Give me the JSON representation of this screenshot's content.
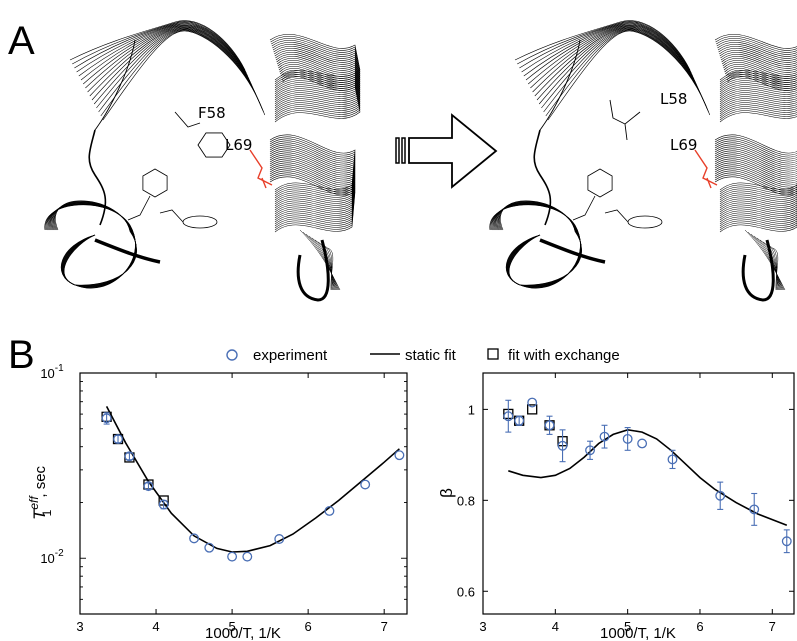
{
  "figure": {
    "panel_a": "A",
    "panel_b": "B",
    "labels": {
      "left_aromatic": "F58",
      "left_leucine": "L69",
      "right_mutant": "L58",
      "right_leucine": "L69"
    },
    "colors": {
      "ribbon": "#000000",
      "highlight": "#e8402a",
      "marker": "#4a6fb5",
      "line": "#000000"
    }
  },
  "legend": {
    "experiment": "experiment",
    "static_fit": "static fit",
    "fit_exchange": "fit with exchange"
  },
  "chart_data": [
    {
      "type": "scatter",
      "ylabel_main": "T",
      "ylabel_sup": "eff",
      "ylabel_sub": "1",
      "ylabel_tail": ", sec",
      "xlabel": "1000/T, 1/K",
      "xlim": [
        3,
        7.3
      ],
      "ylim": [
        0.005,
        0.1
      ],
      "yscale": "log",
      "xticks": [
        "3",
        "4",
        "5",
        "6",
        "7"
      ],
      "yticks": [
        {
          "base": "10",
          "exp": "-1",
          "value": 0.1
        },
        {
          "base": "10",
          "exp": "-2",
          "value": 0.01
        }
      ],
      "series": [
        {
          "name": "experiment",
          "x": [
            3.35,
            3.5,
            3.65,
            3.9,
            4.1,
            4.5,
            4.7,
            5.0,
            5.2,
            5.62,
            6.28,
            6.75,
            7.2
          ],
          "y": [
            0.057,
            0.044,
            0.0355,
            0.0245,
            0.0195,
            0.0128,
            0.0114,
            0.0102,
            0.0102,
            0.0127,
            0.018,
            0.025,
            0.036
          ],
          "err": [
            0.004,
            0.002,
            0.0015,
            0.001,
            0.001,
            0,
            0,
            0,
            0,
            0,
            0,
            0,
            0
          ]
        },
        {
          "name": "fit with exchange",
          "x": [
            3.35,
            3.5,
            3.65,
            3.9,
            4.1
          ],
          "y": [
            0.058,
            0.044,
            0.035,
            0.025,
            0.0205
          ]
        },
        {
          "name": "static fit",
          "x": [
            3.35,
            3.6,
            3.9,
            4.2,
            4.5,
            4.8,
            5.0,
            5.2,
            5.5,
            5.8,
            6.1,
            6.4,
            6.7,
            7.0,
            7.2
          ],
          "y": [
            0.066,
            0.042,
            0.026,
            0.0175,
            0.0132,
            0.0113,
            0.0108,
            0.0109,
            0.0117,
            0.0135,
            0.0165,
            0.0205,
            0.026,
            0.033,
            0.039
          ]
        }
      ]
    },
    {
      "type": "scatter",
      "ylabel": "β",
      "xlabel": "1000/T, 1/K",
      "xlim": [
        3,
        7.3
      ],
      "ylim": [
        0.55,
        1.08
      ],
      "xticks": [
        "3",
        "4",
        "5",
        "6",
        "7"
      ],
      "yticks": [
        {
          "label": "1",
          "value": 1.0
        },
        {
          "label": "0.8",
          "value": 0.8
        },
        {
          "label": "0.6",
          "value": 0.6
        }
      ],
      "series": [
        {
          "name": "experiment",
          "x": [
            3.35,
            3.5,
            3.68,
            3.92,
            4.1,
            4.48,
            4.68,
            5.0,
            5.2,
            5.62,
            6.28,
            6.75,
            7.2
          ],
          "y": [
            0.985,
            0.975,
            1.015,
            0.965,
            0.92,
            0.91,
            0.94,
            0.935,
            0.925,
            0.89,
            0.81,
            0.78,
            0.71
          ],
          "err": [
            0.035,
            0.01,
            0,
            0.02,
            0.035,
            0.02,
            0.025,
            0.025,
            0,
            0.02,
            0.03,
            0.035,
            0.025
          ]
        },
        {
          "name": "fit with exchange",
          "x": [
            3.35,
            3.5,
            3.68,
            3.92,
            4.1
          ],
          "y": [
            0.99,
            0.975,
            1.0,
            0.965,
            0.93
          ]
        },
        {
          "name": "static fit",
          "x": [
            3.35,
            3.55,
            3.8,
            4.0,
            4.2,
            4.4,
            4.6,
            4.8,
            5.0,
            5.2,
            5.4,
            5.6,
            5.8,
            6.0,
            6.2,
            6.5,
            6.8,
            7.2
          ],
          "y": [
            0.865,
            0.855,
            0.85,
            0.855,
            0.87,
            0.895,
            0.925,
            0.945,
            0.955,
            0.95,
            0.935,
            0.91,
            0.88,
            0.85,
            0.825,
            0.795,
            0.77,
            0.745
          ]
        }
      ]
    }
  ]
}
